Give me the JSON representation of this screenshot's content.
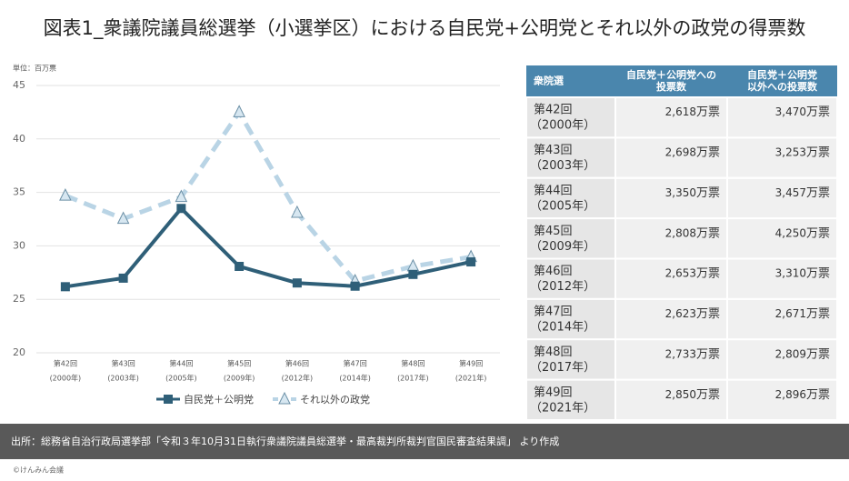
{
  "title": "図表1_衆議院議員総選挙（小選挙区）における自民党+公明党とそれ以外の政党の得票数",
  "chart_data": {
    "type": "line",
    "unit_label": "単位：百万票",
    "categories": [
      "第42回",
      "第43回",
      "第44回",
      "第45回",
      "第46回",
      "第47回",
      "第48回",
      "第49回"
    ],
    "category_years": [
      "(2000年)",
      "(2003年)",
      "(2005年)",
      "(2009年)",
      "(2012年)",
      "(2014年)",
      "(2017年)",
      "(2021年)"
    ],
    "series": [
      {
        "name": "自民党＋公明党",
        "color": "#2f5f78",
        "values": [
          26.18,
          26.98,
          33.5,
          28.08,
          26.53,
          26.23,
          27.33,
          28.5
        ]
      },
      {
        "name": "それ以外の政党",
        "color": "#b9d4e5",
        "values": [
          34.7,
          32.53,
          34.57,
          42.5,
          33.1,
          26.71,
          28.09,
          28.96
        ]
      }
    ],
    "ylim": [
      20,
      45
    ],
    "yticks": [
      20,
      25,
      30,
      35,
      40,
      45
    ],
    "grid": true
  },
  "table": {
    "header": [
      [
        "衆院選"
      ],
      [
        "自民党＋公明党への",
        "投票数"
      ],
      [
        "自民党＋公明党",
        "以外への投票数"
      ]
    ],
    "rows": [
      [
        [
          "第42回",
          "（2000年）"
        ],
        [
          "2,618",
          "万票"
        ],
        [
          "3,470",
          "万票"
        ]
      ],
      [
        [
          "第43回",
          "（2003年）"
        ],
        [
          "2,698",
          "万票"
        ],
        [
          "3,253",
          "万票"
        ]
      ],
      [
        [
          "第44回",
          "（2005年）"
        ],
        [
          "3,350",
          "万票"
        ],
        [
          "3,457",
          "万票"
        ]
      ],
      [
        [
          "第45回",
          "（2009年）"
        ],
        [
          "2,808",
          "万票"
        ],
        [
          "4,250",
          "万票"
        ]
      ],
      [
        [
          "第46回",
          "（2012年）"
        ],
        [
          "2,653",
          "万票"
        ],
        [
          "3,310",
          "万票"
        ]
      ],
      [
        [
          "第47回",
          "（2014年）"
        ],
        [
          "2,623",
          "万票"
        ],
        [
          "2,671",
          "万票"
        ]
      ],
      [
        [
          "第48回",
          "（2017年）"
        ],
        [
          "2,733",
          "万票"
        ],
        [
          "2,809",
          "万票"
        ]
      ],
      [
        [
          "第49回",
          "（2021年）"
        ],
        [
          "2,850",
          "万票"
        ],
        [
          "2,896",
          "万票"
        ]
      ]
    ]
  },
  "source": "出所：総務省自治行政局選挙部「令和３年10月31日執行衆議院議員総選挙・最高裁判所裁判官国民審査結果調」 より作成",
  "copyright": "©けんみん会議"
}
